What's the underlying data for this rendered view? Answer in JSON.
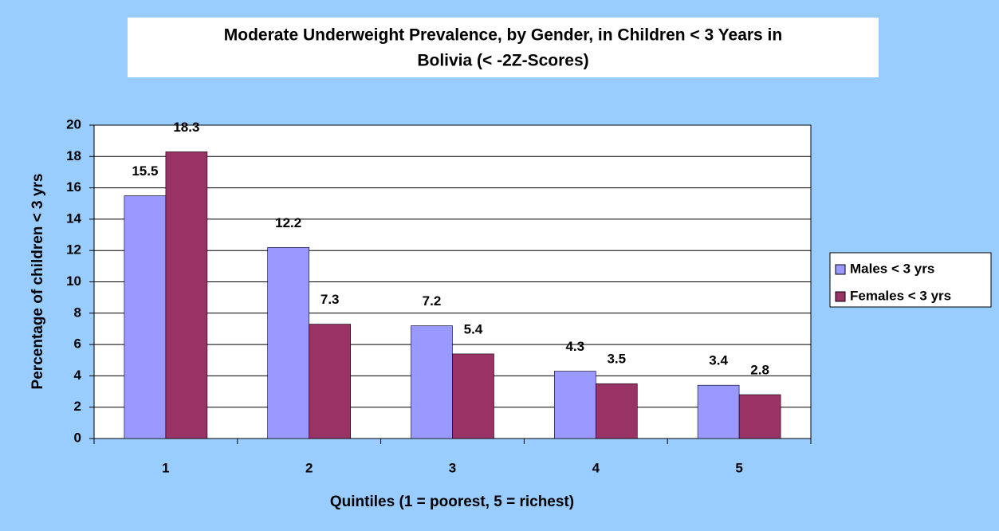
{
  "chart_data": {
    "type": "bar",
    "title": [
      "Moderate Underweight Prevalence, by Gender, in Children < 3 Years in",
      "Bolivia (< -2Z-Scores)"
    ],
    "x_label": "Quintiles (1 = poorest, 5 = richest)",
    "y_label": "Percentage of children < 3 yrs",
    "categories": [
      "1",
      "2",
      "3",
      "4",
      "5"
    ],
    "series": [
      {
        "name": "Males < 3 yrs",
        "color": "#9999ff",
        "values": [
          15.5,
          12.2,
          7.2,
          4.3,
          3.4
        ]
      },
      {
        "name": "Females < 3 yrs",
        "color": "#993366",
        "values": [
          18.3,
          7.3,
          5.4,
          3.5,
          2.8
        ]
      }
    ],
    "ylim": [
      0,
      20
    ],
    "yticks": [
      0,
      2,
      4,
      6,
      8,
      10,
      12,
      14,
      16,
      18,
      20
    ],
    "grid": true,
    "legend": "right"
  }
}
